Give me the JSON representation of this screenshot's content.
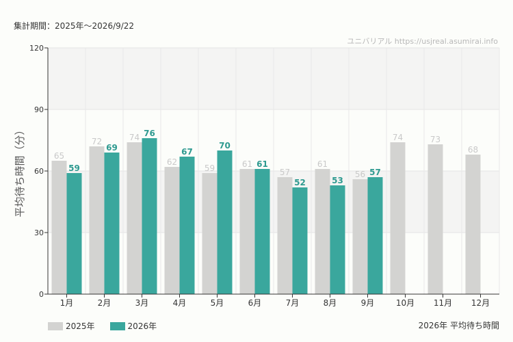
{
  "header": {
    "period_text": "集計期間：2025年〜2026/9/22",
    "credit_text": "ユニバリアル  https://usjreal.asumirai.info"
  },
  "footer": {
    "title_text": "2026年 平均待ち時間"
  },
  "colors": {
    "series_2025": "#d3d3d1",
    "series_2026": "#3aa79d",
    "label_2025": "#c9c9c9",
    "label_2026": "#2e9a90",
    "band": "#f4f4f3"
  },
  "chart_data": {
    "type": "bar",
    "ylabel": "平均待ち時間（分）",
    "ylim": [
      0,
      120
    ],
    "yticks": [
      0,
      30,
      60,
      90,
      120
    ],
    "categories": [
      "1月",
      "2月",
      "3月",
      "4月",
      "5月",
      "6月",
      "7月",
      "8月",
      "9月",
      "10月",
      "11月",
      "12月"
    ],
    "series": [
      {
        "name": "2025年",
        "values": [
          65,
          72,
          74,
          62,
          59,
          61,
          57,
          61,
          56,
          74,
          73,
          68
        ]
      },
      {
        "name": "2026年",
        "values": [
          59,
          69,
          76,
          67,
          70,
          61,
          52,
          53,
          57,
          null,
          null,
          null
        ]
      }
    ],
    "legend_position": "bottom-left",
    "grid": true
  }
}
